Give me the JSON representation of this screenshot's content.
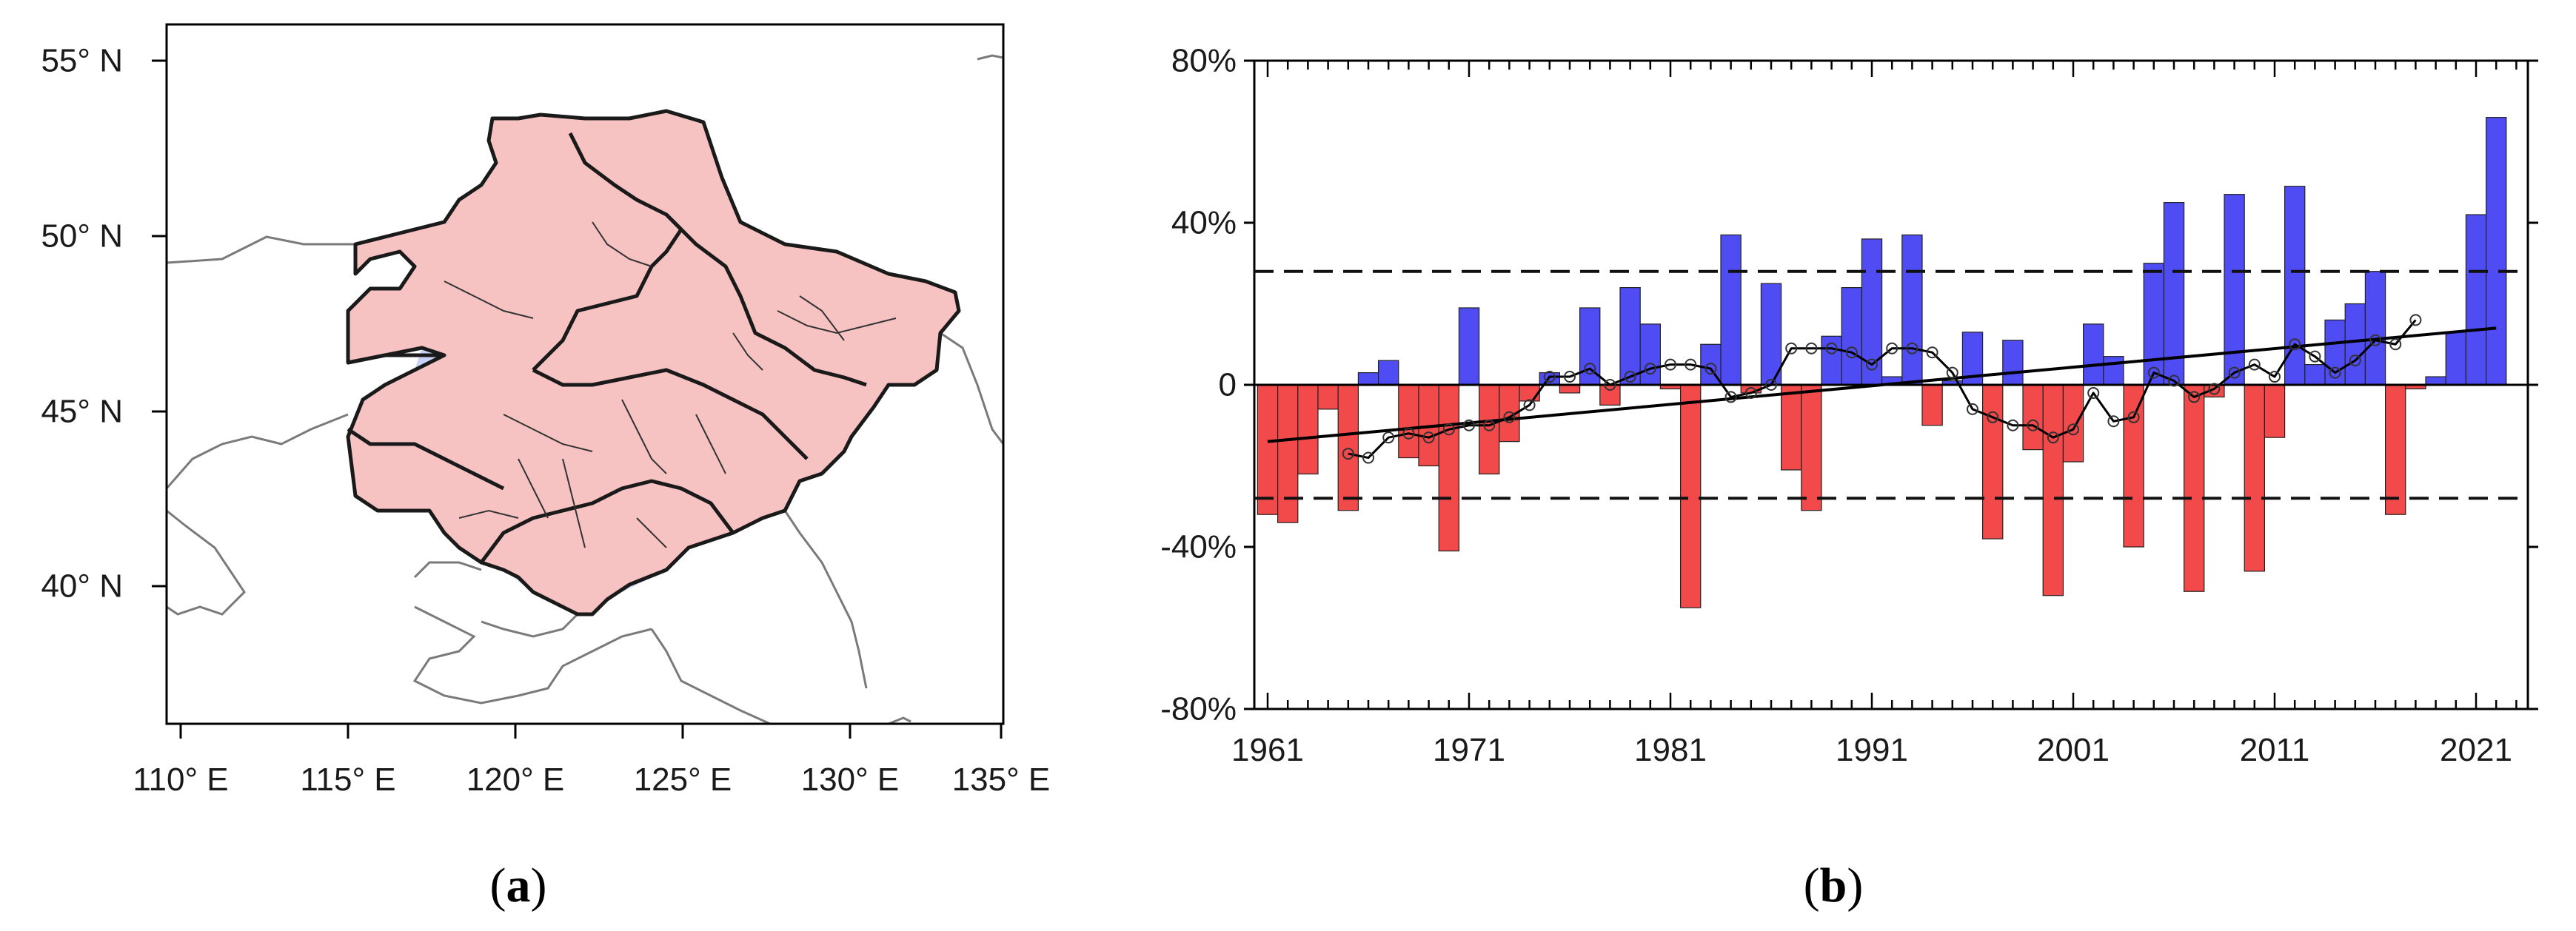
{
  "panels": {
    "a": {
      "label_open": "(",
      "label_letter": "a",
      "label_close": ")"
    },
    "b": {
      "label_open": "(",
      "label_letter": "b",
      "label_close": ")"
    }
  },
  "map": {
    "lat_ticks": [
      "55° N",
      "50° N",
      "45° N",
      "40° N"
    ],
    "lon_ticks": [
      "110° E",
      "115° E",
      "120° E",
      "125° E",
      "130° E",
      "135° E"
    ],
    "colors": {
      "positive_light": "#f7c2c2",
      "negative_1": "#c8d3f7",
      "negative_2": "#a9b9f2",
      "negative_3": "#8ea3ee",
      "negative_4": "#6f88e8",
      "negative_5": "#5472e3",
      "boundary": "#1a1a1a",
      "outline": "#7a7a7a"
    }
  },
  "chart_data": {
    "type": "bar",
    "title": "",
    "xlabel": "",
    "ylabel": "",
    "x": [
      1961,
      1962,
      1963,
      1964,
      1965,
      1966,
      1967,
      1968,
      1969,
      1970,
      1971,
      1972,
      1973,
      1974,
      1975,
      1976,
      1977,
      1978,
      1979,
      1980,
      1981,
      1982,
      1983,
      1984,
      1985,
      1986,
      1987,
      1988,
      1989,
      1990,
      1991,
      1992,
      1993,
      1994,
      1995,
      1996,
      1997,
      1998,
      1999,
      2000,
      2001,
      2002,
      2003,
      2004,
      2005,
      2006,
      2007,
      2008,
      2009,
      2010,
      2011,
      2012,
      2013,
      2014,
      2015,
      2016,
      2017,
      2018,
      2019,
      2020,
      2021,
      2022
    ],
    "values": [
      -32,
      -34,
      -22,
      -6,
      -31,
      3,
      6,
      -18,
      -20,
      -41,
      19,
      -22,
      -14,
      -4,
      3,
      -2,
      19,
      -5,
      24,
      15,
      -1,
      -55,
      10,
      37,
      -2,
      25,
      -21,
      -31,
      12,
      24,
      36,
      2,
      37,
      -10,
      1,
      13,
      -38,
      11,
      -16,
      -52,
      -19,
      15,
      7,
      -40,
      30,
      45,
      -51,
      -3,
      47,
      -46,
      -13,
      49,
      5,
      16,
      20,
      28,
      -32,
      -1,
      2,
      13,
      42,
      66
    ],
    "positive_color": "#4e4cf2",
    "negative_color": "#f24a4a",
    "ylim": [
      -80,
      80
    ],
    "yticks": [
      -80,
      -40,
      0,
      40,
      80
    ],
    "ytick_labels": [
      "-80%",
      "-40%",
      "0",
      "40%",
      "80%"
    ],
    "xticks": [
      1961,
      1971,
      1981,
      1991,
      2001,
      2011,
      2021
    ],
    "xtick_labels": [
      "1961",
      "1971",
      "1981",
      "1991",
      "2001",
      "2011",
      "2021"
    ],
    "threshold_lines": [
      28,
      -28
    ],
    "trend_line": {
      "x": [
        1961,
        2022
      ],
      "y": [
        -14,
        14
      ]
    },
    "moving_average": {
      "x": [
        1965,
        1966,
        1967,
        1968,
        1969,
        1970,
        1971,
        1972,
        1973,
        1974,
        1975,
        1976,
        1977,
        1978,
        1979,
        1980,
        1981,
        1982,
        1983,
        1984,
        1985,
        1986,
        1987,
        1988,
        1989,
        1990,
        1991,
        1992,
        1993,
        1994,
        1995,
        1996,
        1997,
        1998,
        1999,
        2000,
        2001,
        2002,
        2003,
        2004,
        2005,
        2006,
        2007,
        2008,
        2009,
        2010,
        2011,
        2012,
        2013,
        2014,
        2015,
        2016,
        2017,
        2018
      ],
      "y": [
        -17,
        -18,
        -13,
        -12,
        -13,
        -11,
        -10,
        -10,
        -8,
        -5,
        2,
        2,
        4,
        0,
        2,
        4,
        5,
        5,
        4,
        -3,
        -2,
        0,
        9,
        9,
        9,
        8,
        5,
        9,
        9,
        8,
        3,
        -6,
        -8,
        -10,
        -10,
        -13,
        -11,
        -2,
        -9,
        -8,
        3,
        1,
        -3,
        -1,
        3,
        5,
        2,
        10,
        7,
        3,
        6,
        11,
        10,
        16
      ]
    }
  }
}
